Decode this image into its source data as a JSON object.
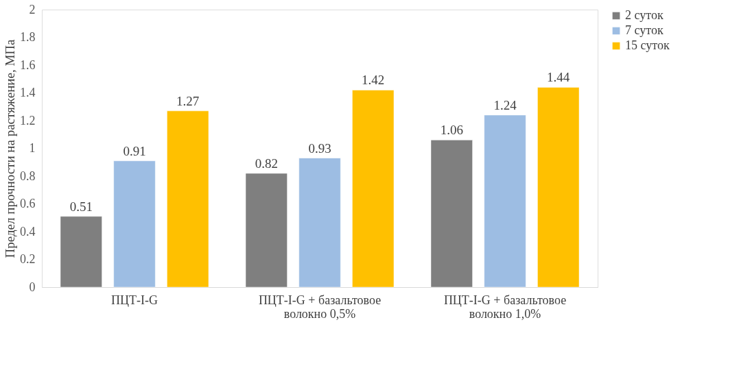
{
  "chart_data": {
    "type": "bar",
    "ylabel": "Предел прочности на растяжение, МПа",
    "categories": [
      "ПЦТ-I-G",
      "ПЦТ-I-G + базальтовое\nволокно 0,5%",
      "ПЦТ-I-G + базальтовое\nволокно 1,0%"
    ],
    "series": [
      {
        "name": "2 суток",
        "color": "#7f7f7f",
        "values": [
          0.51,
          0.82,
          1.06
        ]
      },
      {
        "name": "7 суток",
        "color": "#9dbde3",
        "values": [
          0.91,
          0.93,
          1.24
        ]
      },
      {
        "name": "15 суток",
        "color": "#ffc000",
        "values": [
          1.27,
          1.42,
          1.44
        ]
      }
    ],
    "ylim": [
      0,
      2
    ],
    "yticks": [
      0,
      0.2,
      0.4,
      0.6,
      0.8,
      1,
      1.2,
      1.4,
      1.6,
      1.8,
      2
    ],
    "grid": false,
    "legend": "right",
    "data_labels": true
  }
}
